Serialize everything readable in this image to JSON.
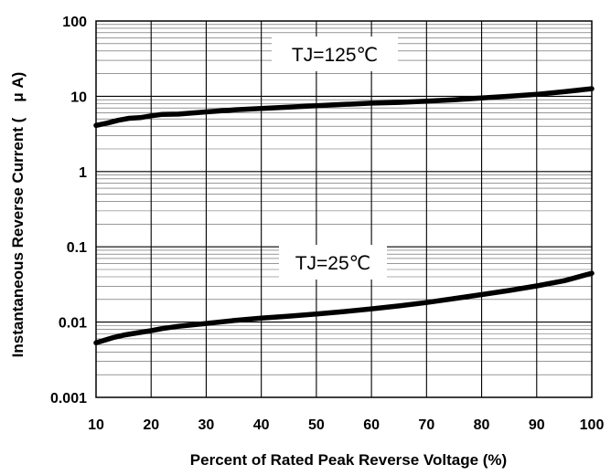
{
  "chart_data": {
    "type": "line",
    "title": "",
    "xlabel": "Percent of Rated Peak Reverse Voltage (%)",
    "ylabel": "Instantaneous Reverse Current (　μ A)",
    "xlim": [
      10,
      100
    ],
    "ylim": [
      0.001,
      100
    ],
    "yscale": "log",
    "grid": true,
    "x_ticks": [
      "10",
      "20",
      "30",
      "40",
      "50",
      "60",
      "70",
      "80",
      "90",
      "100"
    ],
    "y_ticks": [
      "100",
      "10",
      "1",
      "0.1",
      "0.01",
      "0.001"
    ],
    "annotations": [
      {
        "text": "TJ=125℃",
        "series": "TJ=125℃"
      },
      {
        "text": "TJ=25℃",
        "series": "TJ=25℃"
      }
    ],
    "series": [
      {
        "name": "TJ=125℃",
        "x": [
          10,
          12,
          14,
          16,
          18,
          20,
          22,
          25,
          30,
          35,
          40,
          45,
          50,
          55,
          60,
          65,
          70,
          75,
          80,
          85,
          90,
          95,
          100
        ],
        "y": [
          4.1,
          4.4,
          4.8,
          5.1,
          5.2,
          5.5,
          5.75,
          5.8,
          6.2,
          6.6,
          6.9,
          7.2,
          7.5,
          7.8,
          8.1,
          8.3,
          8.6,
          9.0,
          9.5,
          10.0,
          10.6,
          11.5,
          12.6
        ]
      },
      {
        "name": "TJ=25℃",
        "x": [
          10,
          13,
          15,
          17,
          20,
          22,
          25,
          30,
          35,
          40,
          45,
          50,
          55,
          60,
          65,
          70,
          75,
          80,
          85,
          90,
          95,
          100
        ],
        "y": [
          0.0053,
          0.0062,
          0.0067,
          0.0071,
          0.0077,
          0.0082,
          0.0088,
          0.0096,
          0.0105,
          0.0113,
          0.012,
          0.0128,
          0.0138,
          0.015,
          0.0164,
          0.0182,
          0.0205,
          0.0232,
          0.0263,
          0.0302,
          0.0355,
          0.0446
        ]
      }
    ],
    "line_color": "#000000",
    "background": "#ffffff"
  }
}
